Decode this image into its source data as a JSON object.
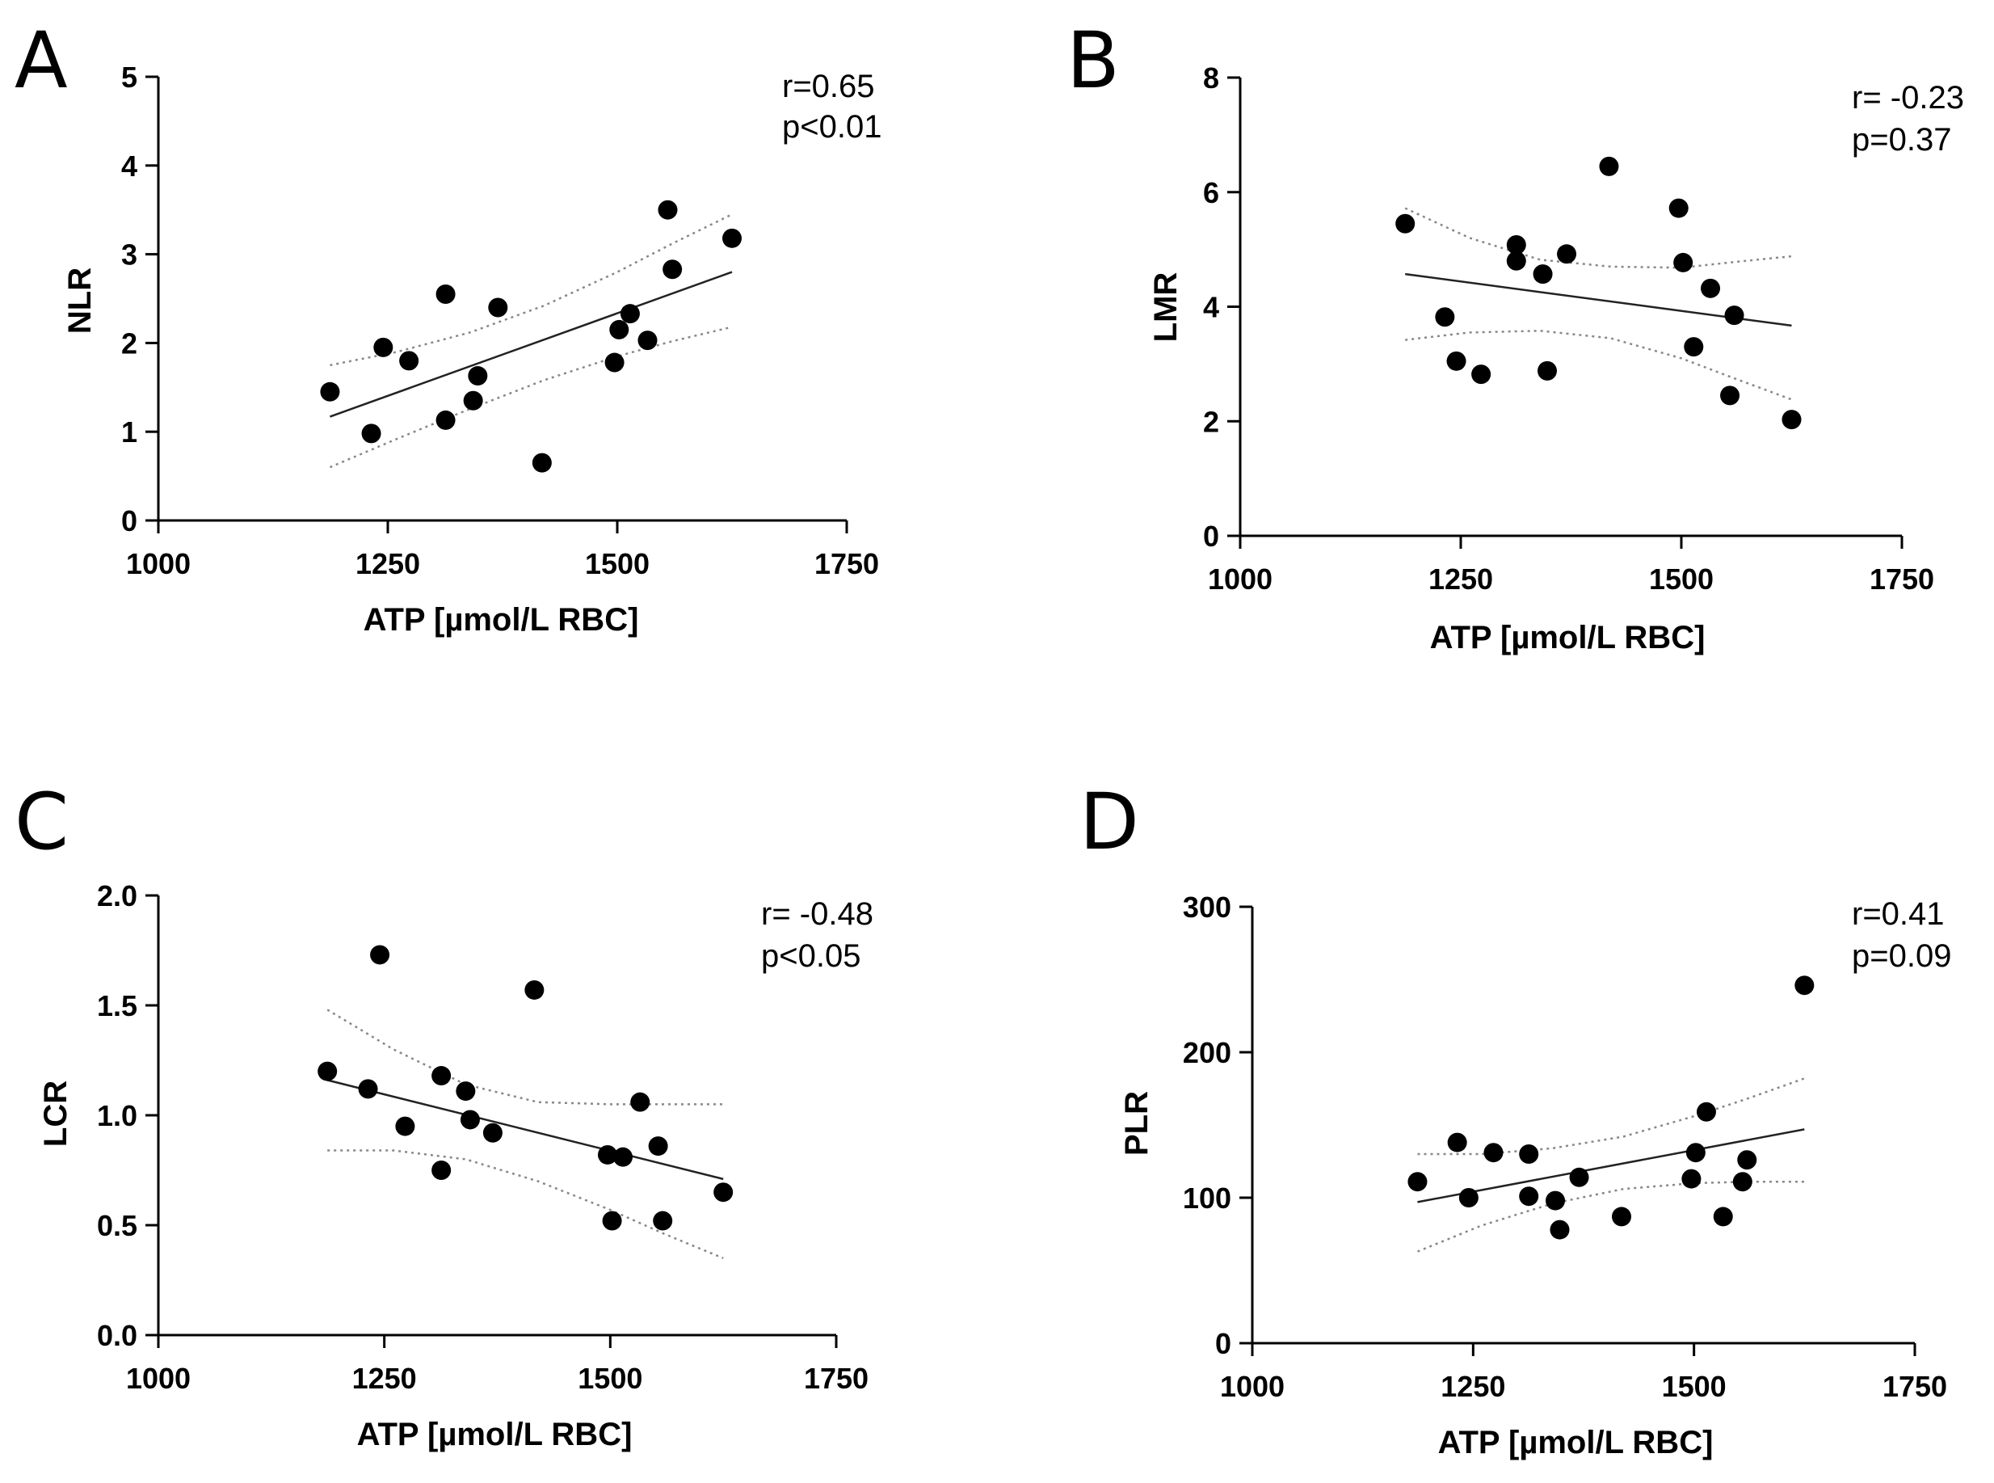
{
  "chart_data": [
    {
      "type": "scatter",
      "panel": "A",
      "xlabel": "ATP [µmol/L RBC]",
      "ylabel": "NLR",
      "xlim": [
        1000,
        1750
      ],
      "ylim": [
        0,
        5
      ],
      "xticks": [
        1000,
        1250,
        1500,
        1750
      ],
      "yticks": [
        0,
        1,
        2,
        3,
        4,
        5
      ],
      "ytick_labels": [
        "0",
        "1",
        "2",
        "3",
        "4",
        "5"
      ],
      "annotation": [
        "r=0.65",
        "p<0.01"
      ],
      "points": [
        [
          1187,
          1.45
        ],
        [
          1232,
          0.98
        ],
        [
          1245,
          1.95
        ],
        [
          1273,
          1.8
        ],
        [
          1313,
          2.55
        ],
        [
          1313,
          1.13
        ],
        [
          1343,
          1.35
        ],
        [
          1348,
          1.63
        ],
        [
          1370,
          2.4
        ],
        [
          1418,
          0.65
        ],
        [
          1497,
          1.78
        ],
        [
          1502,
          2.15
        ],
        [
          1514,
          2.33
        ],
        [
          1533,
          2.03
        ],
        [
          1555,
          3.5
        ],
        [
          1560,
          2.83
        ],
        [
          1625,
          3.18
        ]
      ],
      "fit": [
        [
          1187,
          1.17
        ],
        [
          1625,
          2.8
        ]
      ],
      "ci_upper": [
        [
          1187,
          1.75
        ],
        [
          1260,
          1.9
        ],
        [
          1340,
          2.12
        ],
        [
          1420,
          2.42
        ],
        [
          1500,
          2.8
        ],
        [
          1560,
          3.12
        ],
        [
          1625,
          3.45
        ]
      ],
      "ci_lower": [
        [
          1187,
          0.6
        ],
        [
          1260,
          0.92
        ],
        [
          1340,
          1.26
        ],
        [
          1420,
          1.58
        ],
        [
          1500,
          1.85
        ],
        [
          1560,
          2.02
        ],
        [
          1625,
          2.18
        ]
      ]
    },
    {
      "type": "scatter",
      "panel": "B",
      "xlabel": "ATP [µmol/L RBC]",
      "ylabel": "LMR",
      "xlim": [
        1000,
        1750
      ],
      "ylim": [
        0,
        8
      ],
      "xticks": [
        1000,
        1250,
        1500,
        1750
      ],
      "yticks": [
        0,
        2,
        4,
        6,
        8
      ],
      "ytick_labels": [
        "0",
        "2",
        "4",
        "6",
        "8"
      ],
      "annotation": [
        "r= -0.23",
        "p=0.37"
      ],
      "points": [
        [
          1187,
          5.45
        ],
        [
          1232,
          3.82
        ],
        [
          1245,
          3.05
        ],
        [
          1273,
          2.82
        ],
        [
          1313,
          5.08
        ],
        [
          1313,
          4.8
        ],
        [
          1343,
          4.57
        ],
        [
          1348,
          2.88
        ],
        [
          1370,
          4.92
        ],
        [
          1418,
          6.45
        ],
        [
          1497,
          5.72
        ],
        [
          1502,
          4.77
        ],
        [
          1514,
          3.3
        ],
        [
          1533,
          4.32
        ],
        [
          1555,
          2.45
        ],
        [
          1560,
          3.85
        ],
        [
          1625,
          2.03
        ]
      ],
      "fit": [
        [
          1187,
          4.57
        ],
        [
          1625,
          3.67
        ]
      ],
      "ci_upper": [
        [
          1187,
          5.72
        ],
        [
          1260,
          5.2
        ],
        [
          1340,
          4.82
        ],
        [
          1420,
          4.7
        ],
        [
          1500,
          4.68
        ],
        [
          1560,
          4.78
        ],
        [
          1625,
          4.88
        ]
      ],
      "ci_lower": [
        [
          1187,
          3.42
        ],
        [
          1260,
          3.55
        ],
        [
          1340,
          3.58
        ],
        [
          1420,
          3.45
        ],
        [
          1500,
          3.1
        ],
        [
          1560,
          2.75
        ],
        [
          1625,
          2.38
        ]
      ]
    },
    {
      "type": "scatter",
      "panel": "C",
      "xlabel": "ATP [µmol/L RBC]",
      "ylabel": "LCR",
      "xlim": [
        1000,
        1750
      ],
      "ylim": [
        0,
        2
      ],
      "xticks": [
        1000,
        1250,
        1500,
        1750
      ],
      "yticks": [
        0,
        0.5,
        1,
        1.5,
        2
      ],
      "ytick_labels": [
        "0.0",
        "0.5",
        "1.0",
        "1.5",
        "2.0"
      ],
      "annotation": [
        "r= -0.48",
        "p<0.05"
      ],
      "points": [
        [
          1187,
          1.2
        ],
        [
          1232,
          1.12
        ],
        [
          1245,
          1.73
        ],
        [
          1273,
          0.95
        ],
        [
          1313,
          1.18
        ],
        [
          1313,
          0.75
        ],
        [
          1340,
          1.11
        ],
        [
          1345,
          0.98
        ],
        [
          1370,
          0.92
        ],
        [
          1416,
          1.57
        ],
        [
          1497,
          0.82
        ],
        [
          1502,
          0.52
        ],
        [
          1514,
          0.81
        ],
        [
          1533,
          1.06
        ],
        [
          1553,
          0.86
        ],
        [
          1558,
          0.52
        ],
        [
          1625,
          0.65
        ]
      ],
      "fit": [
        [
          1187,
          1.16
        ],
        [
          1625,
          0.71
        ]
      ],
      "ci_upper": [
        [
          1187,
          1.48
        ],
        [
          1260,
          1.3
        ],
        [
          1340,
          1.14
        ],
        [
          1420,
          1.06
        ],
        [
          1500,
          1.05
        ],
        [
          1560,
          1.05
        ],
        [
          1625,
          1.05
        ]
      ],
      "ci_lower": [
        [
          1187,
          0.84
        ],
        [
          1260,
          0.84
        ],
        [
          1340,
          0.8
        ],
        [
          1420,
          0.7
        ],
        [
          1500,
          0.57
        ],
        [
          1560,
          0.46
        ],
        [
          1625,
          0.35
        ]
      ]
    },
    {
      "type": "scatter",
      "panel": "D",
      "xlabel": "ATP [µmol/L RBC]",
      "ylabel": "PLR",
      "xlim": [
        1000,
        1750
      ],
      "ylim": [
        0,
        300
      ],
      "xticks": [
        1000,
        1250,
        1500,
        1750
      ],
      "yticks": [
        0,
        100,
        200,
        300
      ],
      "ytick_labels": [
        "0",
        "100",
        "200",
        "300"
      ],
      "annotation": [
        "r=0.41",
        "p=0.09"
      ],
      "points": [
        [
          1187,
          111
        ],
        [
          1232,
          138
        ],
        [
          1245,
          100
        ],
        [
          1273,
          131
        ],
        [
          1313,
          130
        ],
        [
          1313,
          101
        ],
        [
          1343,
          98
        ],
        [
          1348,
          78
        ],
        [
          1370,
          114
        ],
        [
          1418,
          87
        ],
        [
          1497,
          113
        ],
        [
          1502,
          131
        ],
        [
          1514,
          159
        ],
        [
          1533,
          87
        ],
        [
          1555,
          111
        ],
        [
          1560,
          126
        ],
        [
          1625,
          246
        ]
      ],
      "fit": [
        [
          1187,
          97
        ],
        [
          1625,
          147
        ]
      ],
      "ci_upper": [
        [
          1187,
          130
        ],
        [
          1260,
          130
        ],
        [
          1340,
          134
        ],
        [
          1420,
          142
        ],
        [
          1500,
          156
        ],
        [
          1560,
          168
        ],
        [
          1625,
          182
        ]
      ],
      "ci_lower": [
        [
          1187,
          63
        ],
        [
          1260,
          81
        ],
        [
          1340,
          96
        ],
        [
          1420,
          106
        ],
        [
          1500,
          110
        ],
        [
          1560,
          111
        ],
        [
          1625,
          111
        ]
      ]
    }
  ]
}
